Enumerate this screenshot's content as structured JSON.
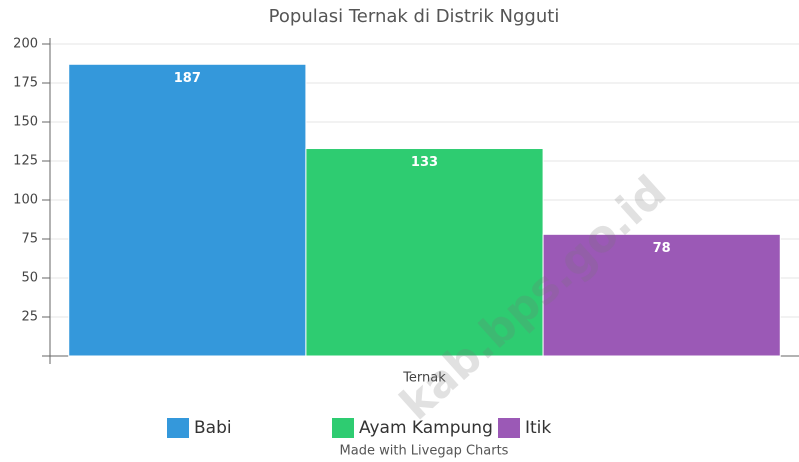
{
  "chart_data": {
    "type": "bar",
    "title": "Populasi Ternak di Distrik Ngguti",
    "categories": [
      "Ternak"
    ],
    "series": [
      {
        "name": "Babi",
        "color": "#3498db",
        "values": [
          187
        ]
      },
      {
        "name": "Ayam Kampung",
        "color": "#2ecc71",
        "values": [
          133
        ]
      },
      {
        "name": "Itik",
        "color": "#9b59b6",
        "values": [
          78
        ]
      }
    ],
    "ylim": [
      0,
      200
    ],
    "yticks": [
      0,
      25,
      50,
      75,
      100,
      125,
      150,
      175,
      200
    ],
    "grid": true,
    "legend": "bottom",
    "credit": "Made with Livegap Charts",
    "watermark": "kab.bps.go.id"
  }
}
